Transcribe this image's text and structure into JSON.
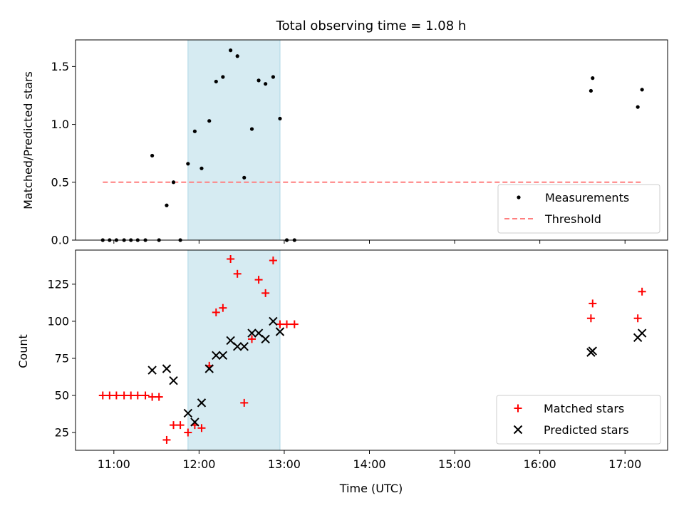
{
  "title": "Total observing time = 1.08 h",
  "colors": {
    "shade": "#add8e6",
    "measurement": "#000000",
    "threshold": "#ff7f7f",
    "matched": "#ff0000",
    "predicted": "#000000"
  },
  "chart_data": [
    {
      "type": "scatter",
      "panel": "top",
      "xlabel": "",
      "ylabel": "Matched/Predicted stars",
      "xlim": [
        10.55,
        17.5
      ],
      "ylim": [
        0,
        1.73
      ],
      "yticks": [
        0.0,
        0.5,
        1.0,
        1.5
      ],
      "ytick_labels": [
        "0.0",
        "0.5",
        "1.0",
        "1.5"
      ],
      "xticks": [
        11,
        12,
        13,
        14,
        15,
        16,
        17
      ],
      "shaded_span": [
        11.87,
        12.95
      ],
      "legend": {
        "placement": "lower right",
        "entries": [
          "Measurements",
          "Threshold"
        ]
      },
      "series": [
        {
          "name": "Measurements",
          "marker": "dot",
          "x": [
            10.87,
            10.95,
            11.03,
            11.12,
            11.2,
            11.28,
            11.37,
            11.45,
            11.53,
            11.62,
            11.7,
            11.78,
            11.87,
            11.95,
            12.03,
            12.12,
            12.2,
            12.28,
            12.37,
            12.45,
            12.53,
            12.62,
            12.7,
            12.78,
            12.87,
            12.95,
            13.03,
            13.12,
            16.6,
            16.62,
            17.15,
            17.2
          ],
          "y": [
            0.0,
            0.0,
            0.0,
            0.0,
            0.0,
            0.0,
            0.0,
            0.73,
            0.0,
            0.3,
            0.5,
            0.0,
            0.66,
            0.94,
            0.62,
            1.03,
            1.37,
            1.41,
            1.64,
            1.59,
            0.54,
            0.96,
            1.38,
            1.35,
            1.41,
            1.05,
            0.0,
            0.0,
            1.29,
            1.4,
            1.15,
            1.3
          ]
        },
        {
          "name": "Threshold",
          "line": "dashed",
          "x": [
            10.87,
            17.2
          ],
          "y": [
            0.5,
            0.5
          ]
        }
      ]
    },
    {
      "type": "scatter",
      "panel": "bottom",
      "xlabel": "Time (UTC)",
      "ylabel": "Count",
      "xlim": [
        10.55,
        17.5
      ],
      "ylim": [
        13,
        148
      ],
      "yticks": [
        25,
        50,
        75,
        100,
        125
      ],
      "xticks": [
        11,
        12,
        13,
        14,
        15,
        16,
        17
      ],
      "xtick_labels": [
        "11:00",
        "12:00",
        "13:00",
        "14:00",
        "15:00",
        "16:00",
        "17:00"
      ],
      "shaded_span": [
        11.87,
        12.95
      ],
      "legend": {
        "placement": "lower right",
        "entries": [
          "Matched stars",
          "Predicted stars"
        ]
      },
      "series": [
        {
          "name": "Matched stars",
          "marker": "plus",
          "x": [
            10.87,
            10.95,
            11.03,
            11.12,
            11.2,
            11.28,
            11.37,
            11.45,
            11.53,
            11.62,
            11.7,
            11.78,
            11.87,
            11.95,
            12.03,
            12.12,
            12.2,
            12.28,
            12.37,
            12.45,
            12.53,
            12.62,
            12.7,
            12.78,
            12.87,
            12.95,
            13.03,
            13.12,
            16.6,
            16.62,
            17.15,
            17.2
          ],
          "y": [
            50,
            50,
            50,
            50,
            50,
            50,
            50,
            49,
            49,
            20,
            30,
            30,
            25,
            30,
            28,
            70,
            106,
            109,
            142,
            132,
            45,
            88,
            128,
            119,
            141,
            98,
            98,
            98,
            102,
            112,
            102,
            120
          ]
        },
        {
          "name": "Predicted stars",
          "marker": "x",
          "x": [
            11.45,
            11.62,
            11.7,
            11.87,
            11.95,
            12.03,
            12.12,
            12.2,
            12.28,
            12.37,
            12.45,
            12.53,
            12.62,
            12.7,
            12.78,
            12.87,
            12.95,
            16.6,
            16.62,
            17.15,
            17.2
          ],
          "y": [
            67,
            68,
            60,
            38,
            32,
            45,
            68,
            77,
            77,
            87,
            83,
            83,
            92,
            92,
            88,
            100,
            93,
            79,
            80,
            89,
            92
          ]
        }
      ]
    }
  ]
}
